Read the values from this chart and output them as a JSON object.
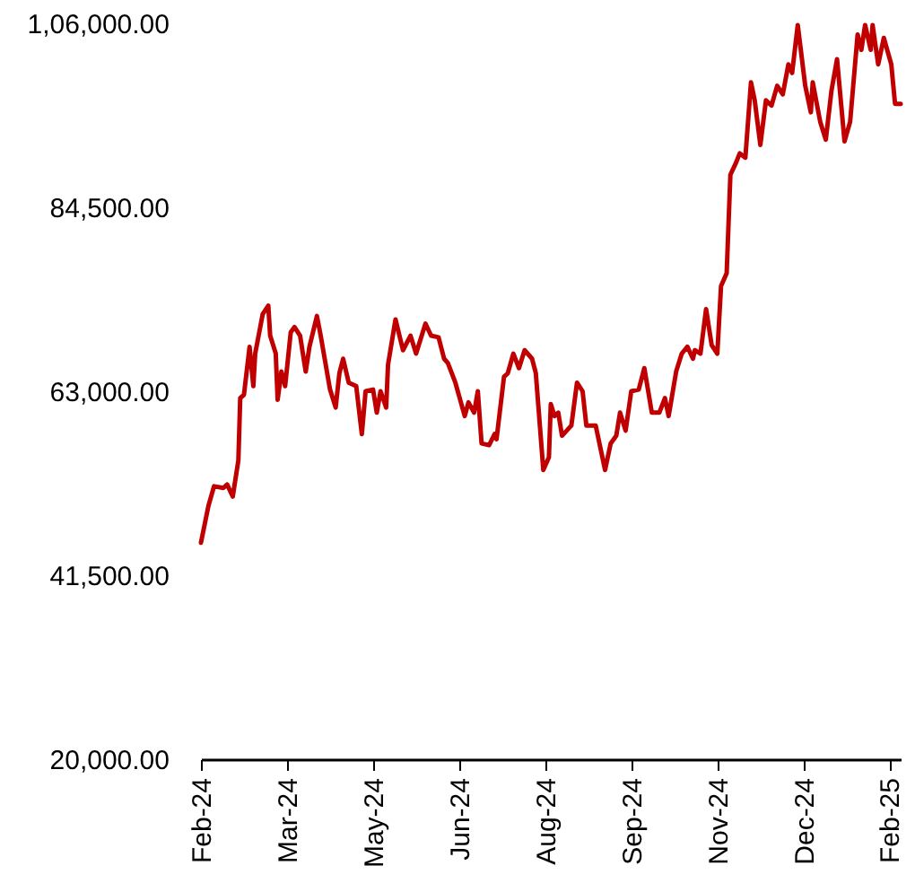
{
  "chart_data": {
    "type": "line",
    "x": [
      "2024-02-01",
      "2024-02-05",
      "2024-02-08",
      "2024-02-13",
      "2024-02-15",
      "2024-02-18",
      "2024-02-21",
      "2024-02-22",
      "2024-02-24",
      "2024-02-27",
      "2024-02-29",
      "2024-03-01",
      "2024-03-05",
      "2024-03-08",
      "2024-03-09",
      "2024-03-12",
      "2024-03-13",
      "2024-03-15",
      "2024-03-17",
      "2024-03-20",
      "2024-03-22",
      "2024-03-25",
      "2024-03-28",
      "2024-03-30",
      "2024-04-03",
      "2024-04-05",
      "2024-04-10",
      "2024-04-13",
      "2024-04-15",
      "2024-04-17",
      "2024-04-20",
      "2024-04-24",
      "2024-04-27",
      "2024-04-29",
      "2024-05-03",
      "2024-05-05",
      "2024-05-07",
      "2024-05-10",
      "2024-05-11",
      "2024-05-15",
      "2024-05-19",
      "2024-05-23",
      "2024-05-26",
      "2024-05-31",
      "2024-06-03",
      "2024-06-07",
      "2024-06-10",
      "2024-06-12",
      "2024-06-16",
      "2024-06-21",
      "2024-06-23",
      "2024-06-26",
      "2024-06-28",
      "2024-06-30",
      "2024-07-04",
      "2024-07-07",
      "2024-07-08",
      "2024-07-12",
      "2024-07-14",
      "2024-07-17",
      "2024-07-20",
      "2024-07-23",
      "2024-07-27",
      "2024-07-29",
      "2024-08-02",
      "2024-08-05",
      "2024-08-06",
      "2024-08-08",
      "2024-08-10",
      "2024-08-12",
      "2024-08-17",
      "2024-08-20",
      "2024-08-23",
      "2024-08-25",
      "2024-08-30",
      "2024-09-04",
      "2024-09-07",
      "2024-09-10",
      "2024-09-12",
      "2024-09-15",
      "2024-09-18",
      "2024-09-22",
      "2024-09-25",
      "2024-09-29",
      "2024-10-03",
      "2024-10-06",
      "2024-10-08",
      "2024-10-12",
      "2024-10-15",
      "2024-10-18",
      "2024-10-21",
      "2024-10-22",
      "2024-10-25",
      "2024-10-28",
      "2024-10-31",
      "2024-11-03",
      "2024-11-05",
      "2024-11-08",
      "2024-11-10",
      "2024-11-13",
      "2024-11-15",
      "2024-11-18",
      "2024-11-21",
      "2024-11-23",
      "2024-11-26",
      "2024-11-29",
      "2024-12-02",
      "2024-12-05",
      "2024-12-08",
      "2024-12-11",
      "2024-12-13",
      "2024-12-16",
      "2024-12-20",
      "2024-12-23",
      "2024-12-24",
      "2024-12-28",
      "2024-12-31",
      "2025-01-03",
      "2025-01-06",
      "2025-01-10",
      "2025-01-13",
      "2025-01-17",
      "2025-01-19",
      "2025-01-21",
      "2025-01-24",
      "2025-01-25",
      "2025-01-28",
      "2025-01-31",
      "2025-02-04",
      "2025-02-06",
      "2025-02-09"
    ],
    "series": [
      {
        "color": "#c00000",
        "values": [
          45300,
          49600,
          51900,
          51700,
          52100,
          50700,
          54900,
          62200,
          62600,
          68200,
          63600,
          67400,
          72000,
          73000,
          69500,
          67400,
          62000,
          65300,
          63600,
          69900,
          70500,
          69500,
          65300,
          68200,
          71800,
          69500,
          63200,
          61100,
          65100,
          66800,
          64000,
          63600,
          58000,
          63000,
          63200,
          60500,
          63000,
          61100,
          66100,
          71400,
          67800,
          69500,
          67400,
          70900,
          69500,
          69300,
          66800,
          66300,
          64000,
          60100,
          61700,
          60500,
          63000,
          56900,
          56700,
          58000,
          57400,
          64700,
          65100,
          67400,
          65700,
          67800,
          66800,
          65100,
          53800,
          55300,
          61500,
          60100,
          60500,
          57800,
          59000,
          64000,
          63000,
          59000,
          59000,
          53800,
          56900,
          57800,
          60500,
          58400,
          63000,
          63200,
          65700,
          60500,
          60500,
          62200,
          60100,
          65300,
          67400,
          68200,
          66800,
          67800,
          67400,
          72600,
          68400,
          67400,
          75300,
          76800,
          88300,
          89700,
          90800,
          90300,
          99100,
          97000,
          91800,
          97000,
          96400,
          98700,
          97700,
          101200,
          100200,
          105800,
          98700,
          95600,
          99100,
          94500,
          92400,
          98100,
          101800,
          92200,
          94500,
          104700,
          102900,
          105800,
          102900,
          105800,
          101200,
          104300,
          101200,
          96600,
          96600
        ]
      }
    ],
    "xlim": [
      "2024-02-01",
      "2025-02-09"
    ],
    "xticks": [
      {
        "value": "2024-02-01",
        "label": "Feb-24"
      },
      {
        "value": "2024-03-18",
        "label": "Mar-24"
      },
      {
        "value": "2024-05-03",
        "label": "May-24"
      },
      {
        "value": "2024-06-18",
        "label": "Jun-24"
      },
      {
        "value": "2024-08-03",
        "label": "Aug-24"
      },
      {
        "value": "2024-09-18",
        "label": "Sep-24"
      },
      {
        "value": "2024-11-03",
        "label": "Nov-24"
      },
      {
        "value": "2024-12-19",
        "label": "Dec-24"
      },
      {
        "value": "2025-02-03",
        "label": "Feb-25"
      }
    ],
    "ylim": [
      20000,
      106000
    ],
    "yticks": [
      {
        "value": 20000,
        "label": "20,000.00"
      },
      {
        "value": 41500,
        "label": "41,500.00"
      },
      {
        "value": 63000,
        "label": "63,000.00"
      },
      {
        "value": 84500,
        "label": "84,500.00"
      },
      {
        "value": 106000,
        "label": "1,06,000.00"
      }
    ],
    "grid": false,
    "legend": false,
    "marker": "none",
    "line_style": "solid"
  }
}
